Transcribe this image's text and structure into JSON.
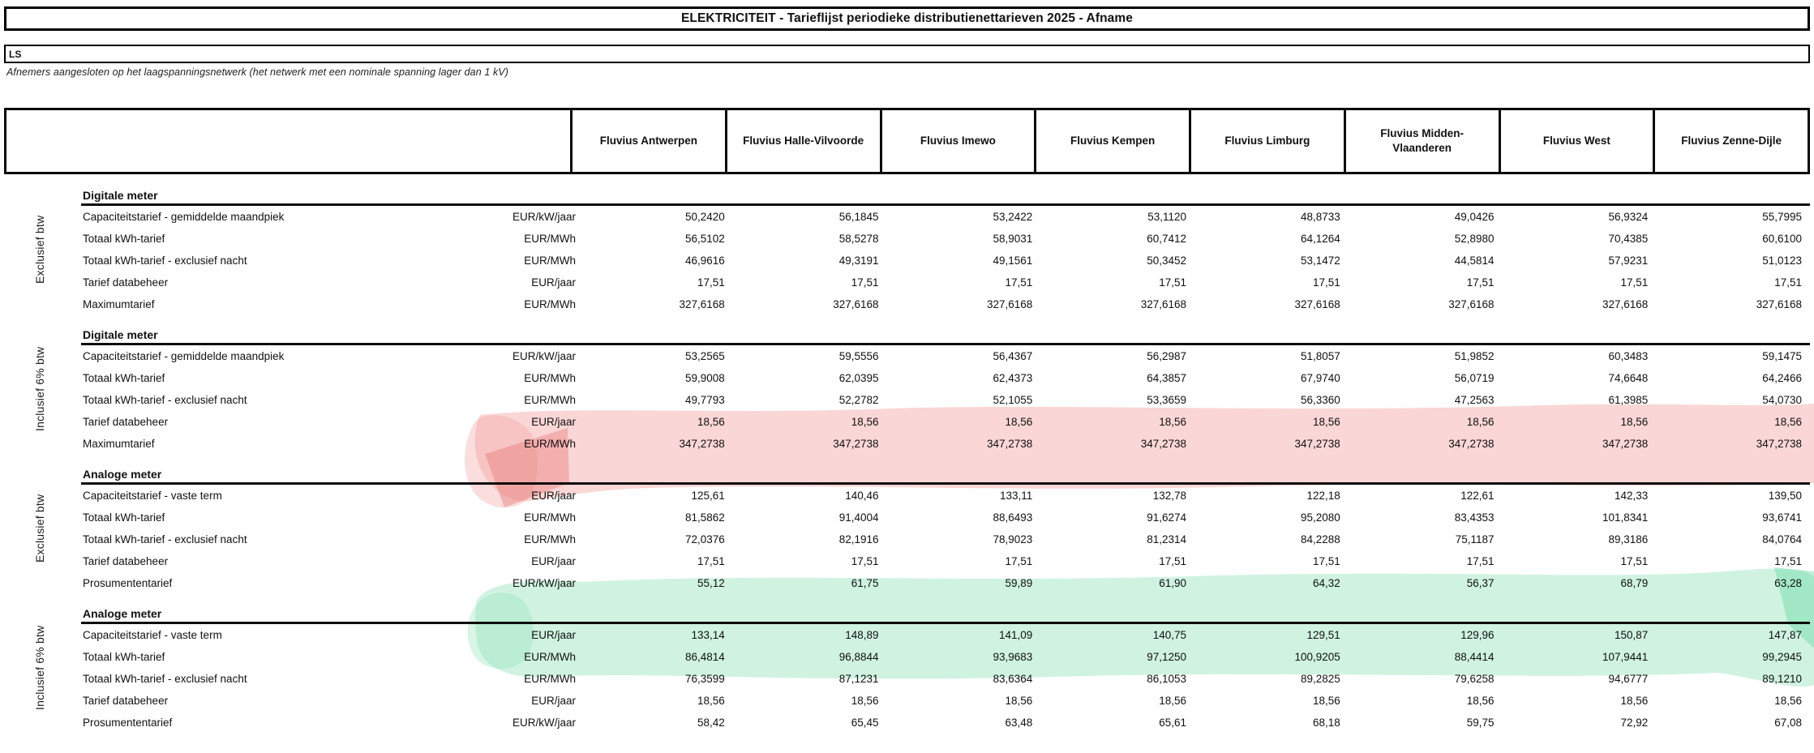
{
  "title": "ELEKTRICITEIT - Tarieflijst periodieke distributienettarieven 2025 - Afname",
  "network": {
    "code": "LS",
    "description": "Afnemers aangesloten op het laagspanningsnetwerk (het netwerk met een nominale spanning lager dan 1 kV)"
  },
  "columns": [
    "Fluvius Antwerpen",
    "Fluvius Halle-Vilvoorde",
    "Fluvius Imewo",
    "Fluvius Kempen",
    "Fluvius Limburg",
    "Fluvius Midden-Vlaanderen",
    "Fluvius West",
    "Fluvius Zenne-Dijle"
  ],
  "sections": [
    {
      "vat_label": "Exclusief btw",
      "meter_type": "Digitale meter",
      "rows": [
        {
          "label": "Capaciteitstarief - gemiddelde maandpiek",
          "unit": "EUR/kW/jaar",
          "values": [
            "50,2420",
            "56,1845",
            "53,2422",
            "53,1120",
            "48,8733",
            "49,0426",
            "56,9324",
            "55,7995"
          ]
        },
        {
          "label": "Totaal kWh-tarief",
          "unit": "EUR/MWh",
          "values": [
            "56,5102",
            "58,5278",
            "58,9031",
            "60,7412",
            "64,1264",
            "52,8980",
            "70,4385",
            "60,6100"
          ]
        },
        {
          "label": "Totaal kWh-tarief - exclusief nacht",
          "unit": "EUR/MWh",
          "values": [
            "46,9616",
            "49,3191",
            "49,1561",
            "50,3452",
            "53,1472",
            "44,5814",
            "57,9231",
            "51,0123"
          ]
        },
        {
          "label": "Tarief databeheer",
          "unit": "EUR/jaar",
          "values": [
            "17,51",
            "17,51",
            "17,51",
            "17,51",
            "17,51",
            "17,51",
            "17,51",
            "17,51"
          ]
        },
        {
          "label": "Maximumtarief",
          "unit": "EUR/MWh",
          "values": [
            "327,6168",
            "327,6168",
            "327,6168",
            "327,6168",
            "327,6168",
            "327,6168",
            "327,6168",
            "327,6168"
          ]
        }
      ]
    },
    {
      "vat_label": "Inclusief 6% btw",
      "meter_type": "Digitale meter",
      "rows": [
        {
          "label": "Capaciteitstarief - gemiddelde maandpiek",
          "unit": "EUR/kW/jaar",
          "values": [
            "53,2565",
            "59,5556",
            "56,4367",
            "56,2987",
            "51,8057",
            "51,9852",
            "60,3483",
            "59,1475"
          ]
        },
        {
          "label": "Totaal kWh-tarief",
          "unit": "EUR/MWh",
          "values": [
            "59,9008",
            "62,0395",
            "62,4373",
            "64,3857",
            "67,9740",
            "56,0719",
            "74,6648",
            "64,2466"
          ]
        },
        {
          "label": "Totaal kWh-tarief - exclusief nacht",
          "unit": "EUR/MWh",
          "values": [
            "49,7793",
            "52,2782",
            "52,1055",
            "53,3659",
            "56,3360",
            "47,2563",
            "61,3985",
            "54,0730"
          ]
        },
        {
          "label": "Tarief databeheer",
          "unit": "EUR/jaar",
          "values": [
            "18,56",
            "18,56",
            "18,56",
            "18,56",
            "18,56",
            "18,56",
            "18,56",
            "18,56"
          ]
        },
        {
          "label": "Maximumtarief",
          "unit": "EUR/MWh",
          "values": [
            "347,2738",
            "347,2738",
            "347,2738",
            "347,2738",
            "347,2738",
            "347,2738",
            "347,2738",
            "347,2738"
          ]
        }
      ]
    },
    {
      "vat_label": "Exclusief btw",
      "meter_type": "Analoge meter",
      "rows": [
        {
          "label": "Capaciteitstarief - vaste term",
          "unit": "EUR/jaar",
          "values": [
            "125,61",
            "140,46",
            "133,11",
            "132,78",
            "122,18",
            "122,61",
            "142,33",
            "139,50"
          ]
        },
        {
          "label": "Totaal kWh-tarief",
          "unit": "EUR/MWh",
          "values": [
            "81,5862",
            "91,4004",
            "88,6493",
            "91,6274",
            "95,2080",
            "83,4353",
            "101,8341",
            "93,6741"
          ]
        },
        {
          "label": "Totaal kWh-tarief - exclusief nacht",
          "unit": "EUR/MWh",
          "values": [
            "72,0376",
            "82,1916",
            "78,9023",
            "81,2314",
            "84,2288",
            "75,1187",
            "89,3186",
            "84,0764"
          ]
        },
        {
          "label": "Tarief databeheer",
          "unit": "EUR/jaar",
          "values": [
            "17,51",
            "17,51",
            "17,51",
            "17,51",
            "17,51",
            "17,51",
            "17,51",
            "17,51"
          ]
        },
        {
          "label": "Prosumententarief",
          "unit": "EUR/kW/jaar",
          "values": [
            "55,12",
            "61,75",
            "59,89",
            "61,90",
            "64,32",
            "56,37",
            "68,79",
            "63,28"
          ]
        }
      ]
    },
    {
      "vat_label": "Inclusief 6% btw",
      "meter_type": "Analoge meter",
      "rows": [
        {
          "label": "Capaciteitstarief - vaste term",
          "unit": "EUR/jaar",
          "values": [
            "133,14",
            "148,89",
            "141,09",
            "140,75",
            "129,51",
            "129,96",
            "150,87",
            "147,87"
          ]
        },
        {
          "label": "Totaal kWh-tarief",
          "unit": "EUR/MWh",
          "values": [
            "86,4814",
            "96,8844",
            "93,9683",
            "97,1250",
            "100,9205",
            "88,4414",
            "107,9441",
            "99,2945"
          ]
        },
        {
          "label": "Totaal kWh-tarief - exclusief nacht",
          "unit": "EUR/MWh",
          "values": [
            "76,3599",
            "87,1231",
            "83,6364",
            "86,1053",
            "89,2825",
            "79,6258",
            "94,6777",
            "89,1210"
          ]
        },
        {
          "label": "Tarief databeheer",
          "unit": "EUR/jaar",
          "values": [
            "18,56",
            "18,56",
            "18,56",
            "18,56",
            "18,56",
            "18,56",
            "18,56",
            "18,56"
          ]
        },
        {
          "label": "Prosumententarief",
          "unit": "EUR/kW/jaar",
          "values": [
            "58,42",
            "65,45",
            "63,48",
            "65,61",
            "68,18",
            "59,75",
            "72,92",
            "67,08"
          ]
        }
      ]
    }
  ],
  "annotations": {
    "pink_highlight_color": "#f2a09e",
    "pink_highlight_dark_color": "#e97f7d",
    "green_highlight_color": "#8fe3b8",
    "green_highlight_dark_color": "#5fd79d"
  }
}
